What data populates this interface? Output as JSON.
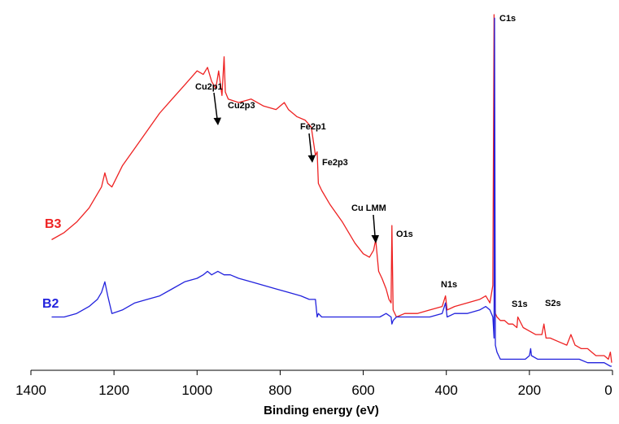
{
  "chart_data": {
    "type": "line",
    "title": "",
    "xlabel": "Binding energy (eV)",
    "ylabel": "",
    "xlim": [
      1400,
      0
    ],
    "x_reversed": true,
    "ylim": [
      0,
      100
    ],
    "y_ticks_shown": false,
    "grid": false,
    "legend": "inline labels at left",
    "x_ticks": [
      "1400",
      "1200",
      "1000",
      "800",
      "600",
      "400",
      "200",
      "0"
    ],
    "x_tick_values": [
      1400,
      1200,
      1000,
      800,
      600,
      400,
      200,
      0
    ],
    "series": [
      {
        "name": "B3",
        "color": "#ee2222",
        "x": [
          1350,
          1320,
          1290,
          1260,
          1240,
          1230,
          1222,
          1215,
          1205,
          1180,
          1150,
          1120,
          1090,
          1060,
          1030,
          1000,
          985,
          975,
          965,
          955,
          948,
          940,
          935,
          932,
          925,
          900,
          870,
          840,
          810,
          790,
          780,
          760,
          740,
          725,
          715,
          711,
          708,
          700,
          680,
          650,
          620,
          600,
          585,
          575,
          570,
          563,
          555,
          545,
          538,
          533,
          531,
          528,
          520,
          500,
          470,
          440,
          410,
          402,
          398,
          380,
          350,
          320,
          305,
          295,
          288,
          285,
          284,
          282,
          278,
          270,
          260,
          250,
          240,
          230,
          228,
          215,
          200,
          185,
          170,
          165,
          160,
          150,
          130,
          110,
          100,
          90,
          75,
          60,
          50,
          40,
          30,
          20,
          10,
          5,
          2
        ],
        "y": [
          36,
          38,
          41,
          45,
          49,
          51,
          55,
          52,
          51,
          57,
          62,
          67,
          72,
          76,
          80,
          84,
          83,
          85,
          81,
          79,
          84,
          77,
          88,
          78,
          76,
          75,
          76,
          74,
          73,
          75,
          73,
          71,
          70,
          68,
          60,
          61,
          52,
          50,
          46,
          41,
          35,
          32,
          31,
          33,
          36,
          27,
          25,
          22,
          19,
          18,
          40,
          16,
          14,
          15,
          15,
          16,
          17,
          20,
          16,
          17,
          18,
          19,
          20,
          18,
          23,
          100,
          24,
          15,
          14,
          13,
          13,
          12,
          12,
          11,
          14,
          11,
          10,
          9,
          9,
          12,
          8,
          8,
          7,
          6,
          9,
          6,
          5,
          5,
          4,
          3,
          3,
          3,
          2,
          4,
          1
        ]
      },
      {
        "name": "B2",
        "color": "#2222dd",
        "x": [
          1350,
          1320,
          1290,
          1260,
          1240,
          1230,
          1222,
          1215,
          1205,
          1180,
          1150,
          1120,
          1090,
          1060,
          1030,
          1000,
          985,
          975,
          965,
          950,
          935,
          920,
          900,
          870,
          840,
          810,
          780,
          750,
          730,
          715,
          711,
          708,
          700,
          680,
          650,
          620,
          600,
          580,
          560,
          545,
          533,
          531,
          528,
          520,
          500,
          470,
          440,
          410,
          402,
          398,
          380,
          350,
          320,
          305,
          295,
          288,
          285,
          284,
          282,
          278,
          270,
          260,
          250,
          230,
          210,
          200,
          197,
          195,
          180,
          160,
          140,
          120,
          100,
          80,
          60,
          40,
          20,
          5,
          2
        ],
        "y": [
          14,
          14,
          15,
          17,
          19,
          21,
          24,
          20,
          15,
          16,
          18,
          19,
          20,
          22,
          24,
          25,
          26,
          27,
          26,
          27,
          26,
          26,
          25,
          24,
          23,
          22,
          21,
          20,
          19,
          19,
          14,
          15,
          14,
          14,
          14,
          14,
          14,
          14,
          14,
          15,
          14,
          12,
          13,
          14,
          14,
          14,
          14,
          15,
          18,
          14,
          15,
          15,
          16,
          17,
          16,
          14,
          8,
          99,
          6,
          4,
          2,
          2,
          2,
          2,
          2,
          3,
          5,
          3,
          2,
          2,
          2,
          2,
          2,
          2,
          1,
          1,
          1,
          0,
          0
        ]
      }
    ],
    "series_labels": [
      "B3",
      "B2"
    ],
    "annotations": [
      {
        "text": "C1s",
        "x": 284
      },
      {
        "text": "Cu2p1",
        "x": 952,
        "arrow": true
      },
      {
        "text": "Cu2p3",
        "x": 932
      },
      {
        "text": "Fe2p1",
        "x": 721,
        "arrow": true
      },
      {
        "text": "Fe2p3",
        "x": 708
      },
      {
        "text": "Cu LMM",
        "x": 568,
        "arrow": true
      },
      {
        "text": "O1s",
        "x": 531
      },
      {
        "text": "N1s",
        "x": 400
      },
      {
        "text": "S1s",
        "x": 228
      },
      {
        "text": "S2s",
        "x": 160
      }
    ]
  }
}
